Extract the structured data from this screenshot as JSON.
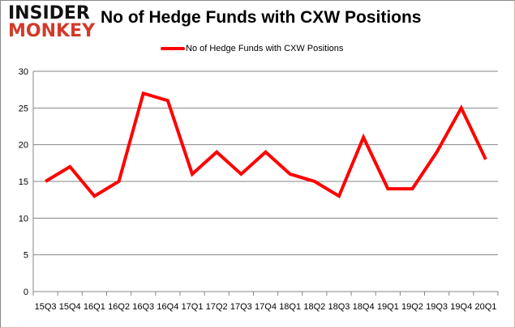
{
  "logo": {
    "line1": "INSIDER",
    "line2": "MONKEY"
  },
  "chart_data": {
    "type": "line",
    "title": "No of Hedge Funds with CXW Positions",
    "xlabel": "",
    "ylabel": "",
    "categories": [
      "15Q3",
      "15Q4",
      "16Q1",
      "16Q2",
      "16Q3",
      "16Q4",
      "17Q1",
      "17Q2",
      "17Q3",
      "17Q4",
      "18Q1",
      "18Q2",
      "18Q3",
      "18Q4",
      "19Q1",
      "19Q2",
      "19Q3",
      "19Q4",
      "20Q1"
    ],
    "series": [
      {
        "name": "No of Hedge Funds with CXW Positions",
        "color": "#ff0000",
        "values": [
          15,
          17,
          13,
          15,
          27,
          26,
          16,
          19,
          16,
          19,
          16,
          15,
          13,
          21,
          14,
          14,
          19,
          25,
          18
        ]
      }
    ],
    "ylim": [
      0,
      30
    ],
    "yticks": [
      0,
      5,
      10,
      15,
      20,
      25,
      30
    ],
    "grid": true,
    "legend": "top-center"
  }
}
